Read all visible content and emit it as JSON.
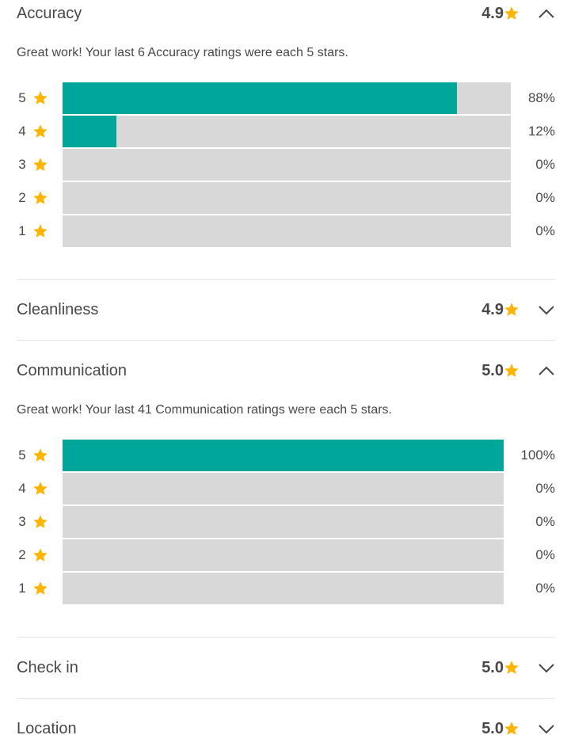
{
  "colors": {
    "accent": "#00a699",
    "track": "#d8d8d8",
    "star": "#ffb400",
    "text": "#484848",
    "divider": "#e4e4e4"
  },
  "icons": {
    "star": "star-icon",
    "expanded": "chevron-up-icon",
    "collapsed": "chevron-down-icon"
  },
  "sections": [
    {
      "title": "Accuracy",
      "score": "4.9",
      "expanded": true,
      "message": "Great work! Your last 6 Accuracy ratings were each 5 stars.",
      "rows": [
        {
          "stars": "5",
          "percent": "88%",
          "fraction": 0.88
        },
        {
          "stars": "4",
          "percent": "12%",
          "fraction": 0.12
        },
        {
          "stars": "3",
          "percent": "0%",
          "fraction": 0
        },
        {
          "stars": "2",
          "percent": "0%",
          "fraction": 0
        },
        {
          "stars": "1",
          "percent": "0%",
          "fraction": 0
        }
      ]
    },
    {
      "title": "Cleanliness",
      "score": "4.9",
      "expanded": false
    },
    {
      "title": "Communication",
      "score": "5.0",
      "expanded": true,
      "message": "Great work! Your last 41 Communication ratings were each 5 stars.",
      "rows": [
        {
          "stars": "5",
          "percent": "100%",
          "fraction": 1
        },
        {
          "stars": "4",
          "percent": "0%",
          "fraction": 0
        },
        {
          "stars": "3",
          "percent": "0%",
          "fraction": 0
        },
        {
          "stars": "2",
          "percent": "0%",
          "fraction": 0
        },
        {
          "stars": "1",
          "percent": "0%",
          "fraction": 0
        }
      ]
    },
    {
      "title": "Check in",
      "score": "5.0",
      "expanded": false
    },
    {
      "title": "Location",
      "score": "5.0",
      "expanded": false
    }
  ]
}
